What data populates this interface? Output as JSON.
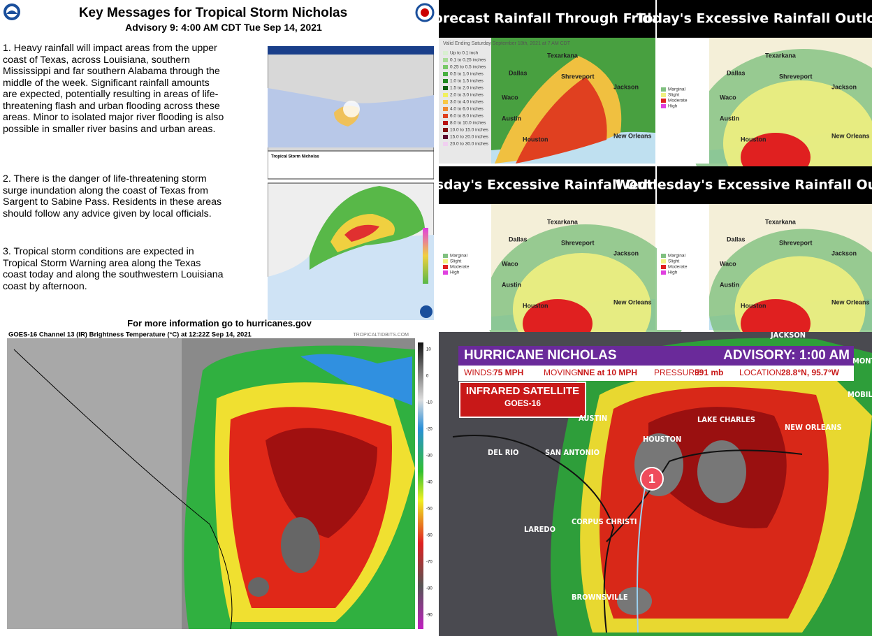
{
  "key_messages": {
    "title": "Key Messages for Tropical Storm Nicholas",
    "advisory": "Advisory 9:  4:00 AM CDT Tue Sep 14, 2021",
    "messages": [
      "1. Heavy rainfall will impact areas from the upper coast of Texas, across Louisiana, southern Mississippi and far southern Alabama through the middle of the week. Significant rainfall amounts are expected, potentially resulting in areas of life-threatening flash and urban flooding across these areas. Minor to isolated major river flooding is also possible in smaller river basins and urban areas.",
      "2. There is the danger of life-threatening storm surge inundation along the coast of Texas from Sargent to Sabine Pass. Residents in these areas should follow any advice given by local officials.",
      "3. Tropical storm conditions are expected in Tropical Storm Warning area along the Texas coast today and along the southwestern Louisiana coast by afternoon."
    ],
    "cone_caption": "Tropical Storm Nicholas",
    "footer": "For more information go to hurricanes.gov"
  },
  "panels": [
    {
      "title": "Forecast Rainfall Through Friday",
      "subtitle": "Valid Ending Saturday September 18th, 2021 at 7 AM CDT",
      "legend": [
        "Up to 0.1 inch",
        "0.1 to 0.25 inches",
        "0.25 to 0.5 inches",
        "0.5 to 1.0 inches",
        "1.0 to 1.5 inches",
        "1.5 to 2.0 inches",
        "2.0 to 3.0 inches",
        "3.0 to 4.0 inches",
        "4.0 to 6.0 inches",
        "6.0 to 8.0 inches",
        "8.0 to 10.0 inches",
        "10.0 to 15.0 inches",
        "15.0 to 20.0 inches",
        "20.0 to 30.0 inches"
      ],
      "cities": [
        "Dallas",
        "Shreveport",
        "Jackson",
        "Houston",
        "New Orleans",
        "Austin",
        "Texarkana",
        "Waco"
      ]
    },
    {
      "title": "Today's Excessive Rainfall Outlook",
      "legend": [
        "Marginal",
        "Slight",
        "Moderate",
        "High"
      ],
      "cities": [
        "Dallas",
        "Shreveport",
        "Jackson",
        "Houston",
        "New Orleans",
        "Austin",
        "Texarkana",
        "Waco"
      ]
    },
    {
      "title": "Tuesday's Excessive Rainfall Outlook",
      "legend": [
        "Marginal",
        "Slight",
        "Moderate",
        "High"
      ],
      "cities": [
        "Dallas",
        "Shreveport",
        "Jackson",
        "Houston",
        "New Orleans",
        "Austin",
        "Texarkana",
        "Waco"
      ]
    },
    {
      "title": "Wednesday's Excessive Rainfall Outlook",
      "legend": [
        "Marginal",
        "Slight",
        "Moderate",
        "High"
      ],
      "cities": [
        "Dallas",
        "Shreveport",
        "Jackson",
        "Houston",
        "New Orleans",
        "Austin",
        "Texarkana",
        "Waco"
      ]
    }
  ],
  "satellite": {
    "header": "GOES-16 Channel 13 (IR) Brightness Temperature (°C) at 12:22Z Sep 14, 2021",
    "credit": "TROPICALTIDBITS.COM",
    "scale": [
      "10",
      "0",
      "-10",
      "-20",
      "-30",
      "-40",
      "-50",
      "-60",
      "-70",
      "-80",
      "-90"
    ]
  },
  "tv": {
    "title": "HURRICANE NICHOLAS",
    "advisory": "ADVISORY: 1:00 AM",
    "winds_label": "WINDS:",
    "winds": "75 MPH",
    "moving_label": "MOVING:",
    "moving": "NNE at 10 MPH",
    "pressure_label": "PRESSURE:",
    "pressure": "991 mb",
    "location_label": "LOCATION:",
    "location": "28.8°N, 95.7°W",
    "box_title": "INFRARED SATELLITE",
    "box_sub": "GOES-16",
    "storm_number": "1",
    "cities": [
      "AUSTIN",
      "HOUSTON",
      "LAKE CHARLES",
      "NEW ORLEANS",
      "DEL RIO",
      "SAN ANTONIO",
      "LAREDO",
      "CORPUS CHRISTI",
      "BROWNSVILLE",
      "JACKSON",
      "MOBILE",
      "MONT"
    ]
  }
}
